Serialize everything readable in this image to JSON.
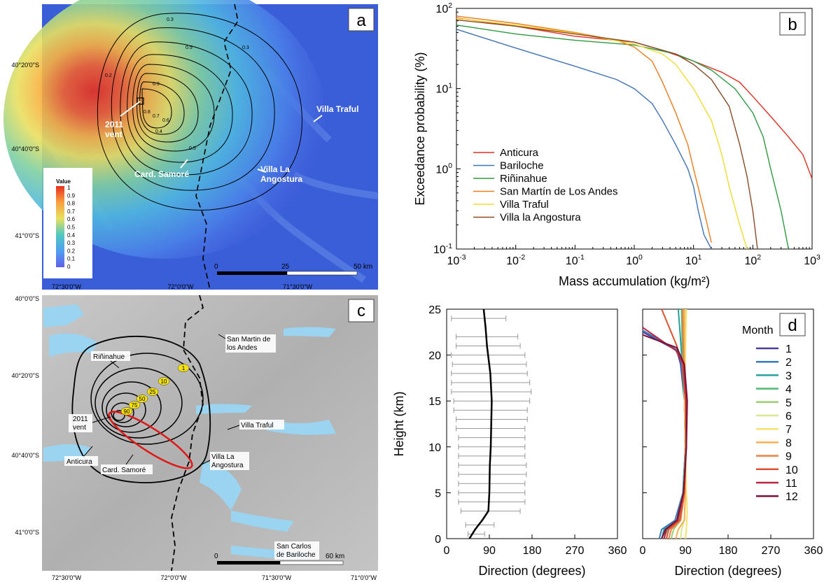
{
  "panel_a": {
    "letter": "a",
    "lat_ticks": [
      "40°20'0\"S",
      "40°40'0\"S",
      "41°0'0\"S"
    ],
    "lon_ticks": [
      "72°30'0\"W",
      "72°0'0\"W",
      "71°30'0\"W"
    ],
    "legend_title": "Value",
    "legend_ticks": [
      "1",
      "0.9",
      "0.8",
      "0.7",
      "0.6",
      "0.5",
      "0.4",
      "0.3",
      "0.2",
      "0.1",
      "0"
    ],
    "contour_labels": [
      "0.3",
      "0.5",
      "0.2",
      "0.9",
      "0.8",
      "0.7",
      "0.6",
      "0.4",
      "0.5",
      "0.1"
    ],
    "places": {
      "vent": [
        "2011",
        "vent"
      ],
      "samore": "Card. Samoré",
      "traful": "Villa Traful",
      "angostura": [
        "Villa La",
        "Angostura"
      ]
    },
    "scalebar": [
      "0",
      "25",
      "50 km"
    ]
  },
  "panel_c": {
    "letter": "c",
    "lat_ticks": [
      "40°0'0\"S",
      "40°20'0\"S",
      "40°40'0\"S",
      "41°0'0\"S"
    ],
    "lon_ticks": [
      "72°30'0\"W",
      "72°0'0\"W",
      "71°30'0\"W",
      "71°0'0\"W"
    ],
    "places": {
      "rininahue": "Riñinahue",
      "sanmartin": [
        "San Martin de",
        "los Andes"
      ],
      "vent": [
        "2011",
        "vent"
      ],
      "traful": "Villa Traful",
      "anticura": "Anticura",
      "samore": "Card. Samoré",
      "angostura": [
        "Villa La",
        "Angostura"
      ],
      "bariloche": [
        "San Carlos",
        "de Bariloche"
      ]
    },
    "ring_labels": [
      "1",
      "10",
      "25",
      "50",
      "75",
      "90"
    ],
    "scalebar": [
      "0",
      "60 km"
    ]
  },
  "chart_data": [
    {
      "panel": "b",
      "type": "line",
      "letter": "b",
      "xscale": "log",
      "yscale": "log",
      "xlim": [
        0.001,
        1000
      ],
      "ylim": [
        0.1,
        100
      ],
      "xlabel": "Mass accumulation (kg/m²)",
      "ylabel": "Exceedance probability (%)",
      "x_ticks": [
        "10-3",
        "10-2",
        "10-1",
        "100",
        "101",
        "102",
        "103"
      ],
      "y_ticks": [
        "10-1",
        "100",
        "101",
        "102"
      ],
      "legend_position": "bottom-left",
      "series": [
        {
          "name": "Anticura",
          "color": "#e03020",
          "points": [
            [
              0.001,
              76
            ],
            [
              0.01,
              60
            ],
            [
              0.1,
              45
            ],
            [
              1,
              38
            ],
            [
              3,
              30
            ],
            [
              10,
              22
            ],
            [
              30,
              16
            ],
            [
              60,
              12
            ],
            [
              100,
              8
            ],
            [
              200,
              4.5
            ],
            [
              400,
              2.5
            ],
            [
              700,
              1.5
            ],
            [
              1000,
              0.75
            ]
          ]
        },
        {
          "name": "Bariloche",
          "color": "#3f73b8",
          "points": [
            [
              0.001,
              55
            ],
            [
              0.01,
              32
            ],
            [
              0.1,
              19
            ],
            [
              0.5,
              13
            ],
            [
              1,
              10
            ],
            [
              2,
              6.5
            ],
            [
              3,
              4
            ],
            [
              5,
              2
            ],
            [
              8,
              1
            ],
            [
              10,
              0.6
            ],
            [
              12,
              0.3
            ],
            [
              15,
              0.15
            ],
            [
              20,
              0.1
            ]
          ]
        },
        {
          "name": "Riñinahue",
          "color": "#2e9a40",
          "points": [
            [
              0.001,
              62
            ],
            [
              0.01,
              48
            ],
            [
              0.1,
              40
            ],
            [
              1,
              35
            ],
            [
              5,
              27
            ],
            [
              10,
              22
            ],
            [
              20,
              17
            ],
            [
              50,
              10
            ],
            [
              100,
              5
            ],
            [
              150,
              2.5
            ],
            [
              200,
              1
            ],
            [
              300,
              0.3
            ],
            [
              400,
              0.1
            ]
          ]
        },
        {
          "name": "San Martín de Los Andes",
          "color": "#ee7a18",
          "points": [
            [
              0.001,
              80
            ],
            [
              0.01,
              65
            ],
            [
              0.1,
              50
            ],
            [
              0.5,
              40
            ],
            [
              1,
              33
            ],
            [
              2,
              22
            ],
            [
              3,
              12
            ],
            [
              5,
              5
            ],
            [
              8,
              2
            ],
            [
              10,
              1
            ],
            [
              15,
              0.3
            ],
            [
              20,
              0.12
            ]
          ]
        },
        {
          "name": "Villa Traful",
          "color": "#f0dc30",
          "points": [
            [
              0.001,
              75
            ],
            [
              0.01,
              62
            ],
            [
              0.1,
              49
            ],
            [
              1,
              36
            ],
            [
              3,
              27
            ],
            [
              5,
              20
            ],
            [
              10,
              10
            ],
            [
              20,
              4
            ],
            [
              30,
              1.5
            ],
            [
              40,
              0.6
            ],
            [
              60,
              0.2
            ],
            [
              80,
              0.1
            ]
          ]
        },
        {
          "name": "Villa la Angostura",
          "color": "#8a4a28",
          "points": [
            [
              0.001,
              72
            ],
            [
              0.01,
              60
            ],
            [
              0.1,
              48
            ],
            [
              1,
              38
            ],
            [
              5,
              27
            ],
            [
              10,
              20
            ],
            [
              20,
              13
            ],
            [
              40,
              6
            ],
            [
              60,
              2
            ],
            [
              80,
              0.8
            ],
            [
              100,
              0.3
            ],
            [
              120,
              0.1
            ]
          ]
        }
      ]
    },
    {
      "panel": "d-left",
      "type": "line",
      "letter": "",
      "xlim": [
        0,
        360
      ],
      "ylim": [
        0,
        25
      ],
      "xlabel": "Direction (degrees)",
      "ylabel": "Height (km)",
      "x_ticks": [
        "0",
        "90",
        "180",
        "270",
        "360"
      ],
      "y_ticks": [
        "0",
        "5",
        "10",
        "15",
        "20",
        "25"
      ],
      "mean": [
        [
          48,
          0
        ],
        [
          60,
          1
        ],
        [
          75,
          2
        ],
        [
          88,
          3
        ],
        [
          90,
          5
        ],
        [
          91,
          8
        ],
        [
          93,
          10
        ],
        [
          95,
          15
        ],
        [
          92,
          18
        ],
        [
          85,
          21
        ],
        [
          82,
          23
        ],
        [
          78,
          25
        ]
      ],
      "errorbars": [
        {
          "y": 0.5,
          "lo": 45,
          "hi": 80
        },
        {
          "y": 1.5,
          "lo": 40,
          "hi": 100
        },
        {
          "y": 3,
          "lo": 30,
          "hi": 155
        },
        {
          "y": 4,
          "lo": 25,
          "hi": 165
        },
        {
          "y": 5,
          "lo": 25,
          "hi": 165
        },
        {
          "y": 6,
          "lo": 25,
          "hi": 165
        },
        {
          "y": 7,
          "lo": 25,
          "hi": 168
        },
        {
          "y": 8,
          "lo": 25,
          "hi": 168
        },
        {
          "y": 9,
          "lo": 25,
          "hi": 165
        },
        {
          "y": 10,
          "lo": 25,
          "hi": 165
        },
        {
          "y": 11,
          "lo": 25,
          "hi": 165
        },
        {
          "y": 12,
          "lo": 20,
          "hi": 165
        },
        {
          "y": 13,
          "lo": 20,
          "hi": 170
        },
        {
          "y": 14,
          "lo": 15,
          "hi": 170
        },
        {
          "y": 15,
          "lo": 15,
          "hi": 175
        },
        {
          "y": 16,
          "lo": 10,
          "hi": 178
        },
        {
          "y": 17,
          "lo": 10,
          "hi": 175
        },
        {
          "y": 18,
          "lo": 10,
          "hi": 170
        },
        {
          "y": 19,
          "lo": 12,
          "hi": 168
        },
        {
          "y": 20,
          "lo": 10,
          "hi": 165
        },
        {
          "y": 21,
          "lo": 20,
          "hi": 155
        },
        {
          "y": 22,
          "lo": 20,
          "hi": 150
        },
        {
          "y": 24,
          "lo": 10,
          "hi": 125
        }
      ]
    },
    {
      "panel": "d-right",
      "type": "line",
      "letter": "d",
      "xlim": [
        0,
        360
      ],
      "ylim": [
        0,
        25
      ],
      "xlabel": "Direction (degrees)",
      "x_ticks": [
        "0",
        "90",
        "180",
        "270",
        "360"
      ],
      "legend_title": "Month",
      "legend_position": "right",
      "series": [
        {
          "name": "1",
          "color": "#4a3f9a",
          "points": [
            [
              45,
              0
            ],
            [
              50,
              1
            ],
            [
              72,
              2
            ],
            [
              85,
              5
            ],
            [
              90,
              10
            ],
            [
              88,
              15
            ],
            [
              80,
              19
            ],
            [
              72,
              20.5
            ],
            [
              0,
              22.5
            ]
          ]
        },
        {
          "name": "2",
          "color": "#3a7ab8",
          "points": [
            [
              35,
              0
            ],
            [
              40,
              1
            ],
            [
              68,
              2
            ],
            [
              85,
              5
            ],
            [
              90,
              10
            ],
            [
              88,
              15
            ],
            [
              82,
              19
            ],
            [
              74,
              20.5
            ],
            [
              0,
              22.7
            ]
          ]
        },
        {
          "name": "3",
          "color": "#2aa0a0",
          "points": [
            [
              40,
              0
            ],
            [
              45,
              1
            ],
            [
              72,
              2
            ],
            [
              85,
              5
            ],
            [
              90,
              10
            ],
            [
              88,
              15
            ],
            [
              82,
              20
            ],
            [
              78,
              23
            ],
            [
              75,
              25
            ]
          ]
        },
        {
          "name": "4",
          "color": "#4cb870",
          "points": [
            [
              45,
              0
            ],
            [
              52,
              1
            ],
            [
              75,
              2
            ],
            [
              86,
              5
            ],
            [
              90,
              10
            ],
            [
              88,
              15
            ],
            [
              84,
              20
            ],
            [
              82,
              25
            ]
          ]
        },
        {
          "name": "5",
          "color": "#9ad070",
          "points": [
            [
              60,
              0
            ],
            [
              65,
              1
            ],
            [
              80,
              2
            ],
            [
              88,
              5
            ],
            [
              90,
              10
            ],
            [
              88,
              15
            ],
            [
              86,
              20
            ],
            [
              86,
              25
            ]
          ]
        },
        {
          "name": "6",
          "color": "#d8e890",
          "points": [
            [
              80,
              0
            ],
            [
              82,
              1
            ],
            [
              88,
              2
            ],
            [
              90,
              5
            ],
            [
              90,
              10
            ],
            [
              88,
              15
            ],
            [
              88,
              20
            ],
            [
              90,
              25
            ]
          ]
        },
        {
          "name": "7",
          "color": "#f8e070",
          "points": [
            [
              90,
              0
            ],
            [
              92,
              1
            ],
            [
              94,
              3
            ],
            [
              92,
              5
            ],
            [
              90,
              10
            ],
            [
              89,
              15
            ],
            [
              90,
              20
            ],
            [
              92,
              25
            ]
          ]
        },
        {
          "name": "8",
          "color": "#f8b050",
          "points": [
            [
              70,
              0
            ],
            [
              75,
              1
            ],
            [
              88,
              2
            ],
            [
              90,
              5
            ],
            [
              90,
              10
            ],
            [
              90,
              15
            ],
            [
              88,
              20
            ],
            [
              88,
              25
            ]
          ]
        },
        {
          "name": "9",
          "color": "#ee8040",
          "points": [
            [
              55,
              0
            ],
            [
              60,
              1
            ],
            [
              80,
              2
            ],
            [
              88,
              5
            ],
            [
              90,
              10
            ],
            [
              90,
              15
            ],
            [
              86,
              20
            ],
            [
              84,
              25
            ]
          ]
        },
        {
          "name": "10",
          "color": "#e05030",
          "points": [
            [
              50,
              0
            ],
            [
              55,
              1
            ],
            [
              78,
              2
            ],
            [
              88,
              5
            ],
            [
              92,
              10
            ],
            [
              90,
              15
            ],
            [
              84,
              19
            ],
            [
              72,
              21
            ],
            [
              40,
              25
            ]
          ]
        },
        {
          "name": "11",
          "color": "#b82840",
          "points": [
            [
              45,
              0
            ],
            [
              50,
              1
            ],
            [
              74,
              2
            ],
            [
              86,
              5
            ],
            [
              92,
              10
            ],
            [
              92,
              15
            ],
            [
              86,
              19
            ],
            [
              70,
              20.5
            ],
            [
              0,
              23
            ]
          ]
        },
        {
          "name": "12",
          "color": "#7a1038",
          "points": [
            [
              40,
              0
            ],
            [
              48,
              1
            ],
            [
              72,
              2
            ],
            [
              86,
              5
            ],
            [
              92,
              10
            ],
            [
              94,
              15
            ],
            [
              88,
              19
            ],
            [
              72,
              20.8
            ],
            [
              0,
              22.2
            ]
          ]
        }
      ]
    }
  ]
}
